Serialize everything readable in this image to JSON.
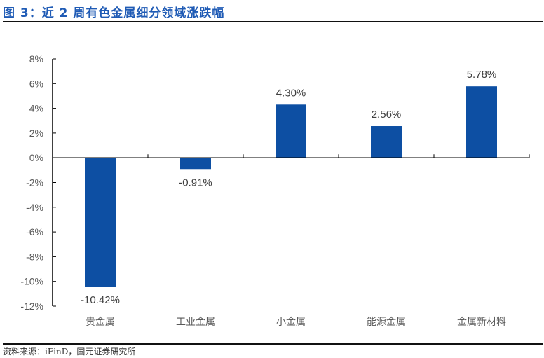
{
  "header": {
    "title": "图 3：近 2 周有色金属细分领域涨跌幅"
  },
  "footer": {
    "source": "资料来源：iFinD，国元证券研究所"
  },
  "colors": {
    "bar": "#0d4fa3",
    "title": "#1f5bb5",
    "axis": "#000000",
    "text": "#595959"
  },
  "chart_data": {
    "type": "bar",
    "title": "近 2 周有色金属细分领域涨跌幅",
    "categories": [
      "贵金属",
      "工业金属",
      "小金属",
      "能源金属",
      "金属新材料"
    ],
    "values": [
      -10.42,
      -0.91,
      4.3,
      2.56,
      5.78
    ],
    "value_labels": [
      "-10.42%",
      "-0.91%",
      "4.30%",
      "2.56%",
      "5.78%"
    ],
    "xlabel": "",
    "ylabel": "",
    "ylim": [
      -12,
      8
    ],
    "yticks": [
      "8%",
      "6%",
      "4%",
      "2%",
      "0%",
      "-2%",
      "-4%",
      "-6%",
      "-8%",
      "-10%",
      "-12%"
    ],
    "ytick_values": [
      8,
      6,
      4,
      2,
      0,
      -2,
      -4,
      -6,
      -8,
      -10,
      -12
    ],
    "grid": false,
    "legend": null
  }
}
